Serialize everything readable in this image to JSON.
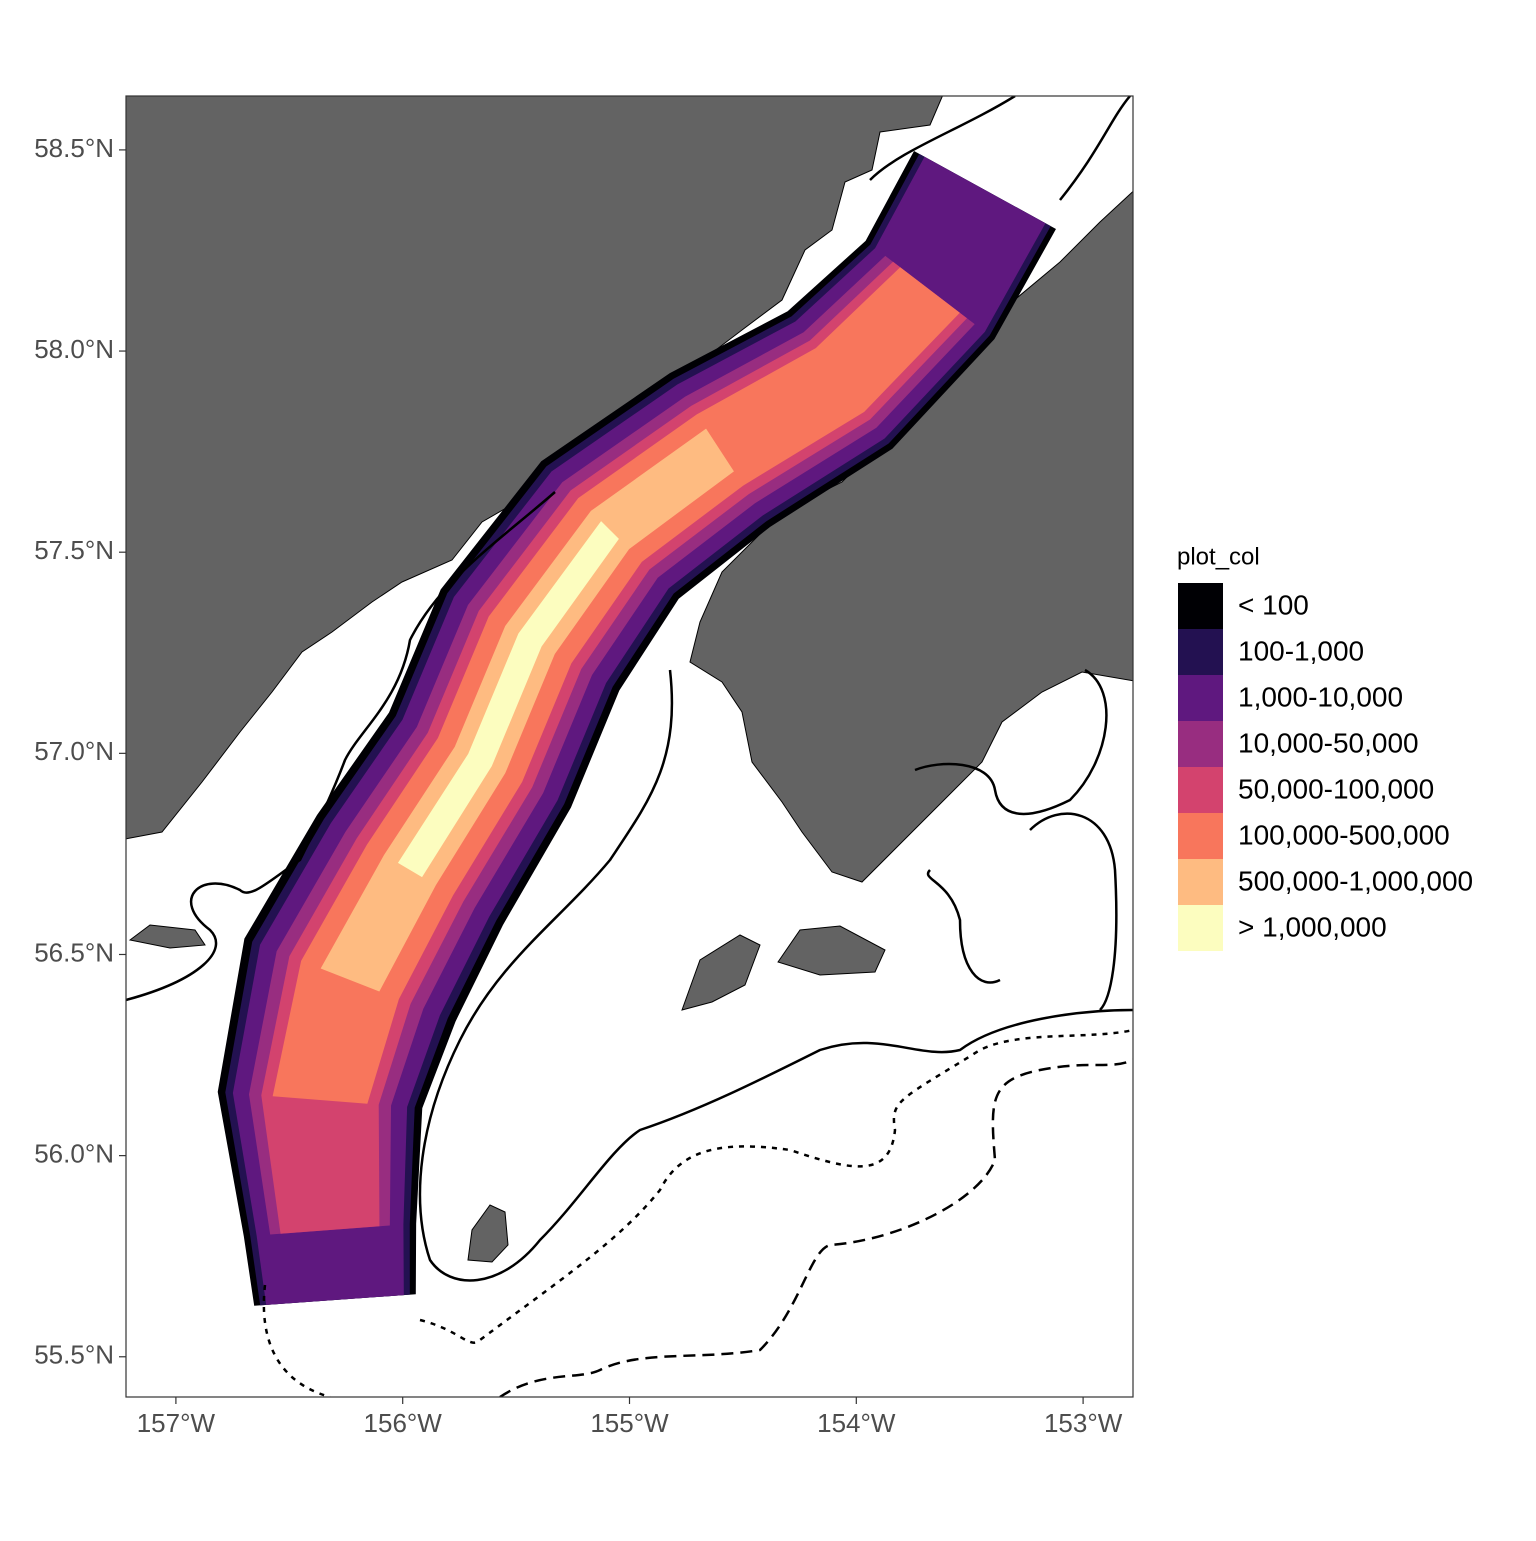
{
  "chart_data": {
    "type": "map",
    "xlim": [
      -157.22,
      -152.78
    ],
    "ylim": [
      55.4,
      58.634
    ],
    "xticks": [
      {
        "value": -157,
        "label": "157°W"
      },
      {
        "value": -156,
        "label": "156°W"
      },
      {
        "value": -155,
        "label": "155°W"
      },
      {
        "value": -154,
        "label": "154°W"
      },
      {
        "value": -153,
        "label": "153°W"
      }
    ],
    "yticks": [
      {
        "value": 55.5,
        "label": "55.5°N"
      },
      {
        "value": 56.0,
        "label": "56.0°N"
      },
      {
        "value": 56.5,
        "label": "56.5°N"
      },
      {
        "value": 57.0,
        "label": "57.0°N"
      },
      {
        "value": 57.5,
        "label": "57.5°N"
      },
      {
        "value": 58.0,
        "label": "58.0°N"
      },
      {
        "value": 58.5,
        "label": "58.5°N"
      }
    ],
    "legend": {
      "title": "plot_col",
      "position": "right",
      "items": [
        {
          "label": "< 100",
          "color": "#000004"
        },
        {
          "label": "100-1,000",
          "color": "#231151"
        },
        {
          "label": "1,000-10,000",
          "color": "#5f187f"
        },
        {
          "label": "10,000-50,000",
          "color": "#982d80"
        },
        {
          "label": "50,000-100,000",
          "color": "#d3436e"
        },
        {
          "label": "100,000-500,000",
          "color": "#f8765c"
        },
        {
          "label": "500,000-1,000,000",
          "color": "#febb81"
        },
        {
          "label": "> 1,000,000",
          "color": "#fcfdbf"
        }
      ]
    }
  }
}
